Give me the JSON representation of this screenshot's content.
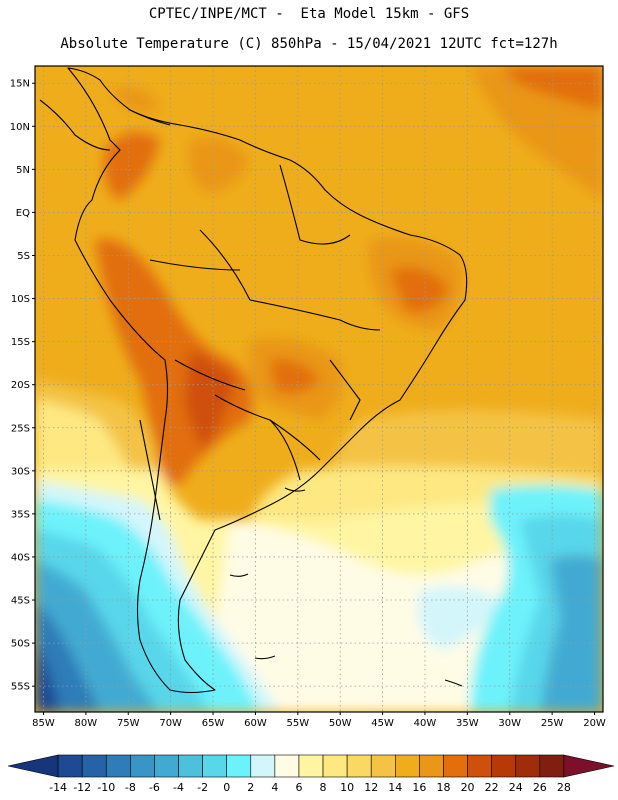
{
  "header": {
    "line1": "CPTEC/INPE/MCT -  Eta Model 15km - GFS",
    "line2": "Absolute Temperature (C) 850hPa - 15/04/2021 12UTC fct=127h"
  },
  "map": {
    "lon_range": [
      -86,
      -19
    ],
    "lat_range": [
      -58,
      17
    ],
    "lat_ticks": [
      {
        "value": 15,
        "label": "15N"
      },
      {
        "value": 10,
        "label": "10N"
      },
      {
        "value": 5,
        "label": "5N"
      },
      {
        "value": 0,
        "label": "EQ"
      },
      {
        "value": -5,
        "label": "5S"
      },
      {
        "value": -10,
        "label": "10S"
      },
      {
        "value": -15,
        "label": "15S"
      },
      {
        "value": -20,
        "label": "20S"
      },
      {
        "value": -25,
        "label": "25S"
      },
      {
        "value": -30,
        "label": "30S"
      },
      {
        "value": -35,
        "label": "35S"
      },
      {
        "value": -40,
        "label": "40S"
      },
      {
        "value": -45,
        "label": "45S"
      },
      {
        "value": -50,
        "label": "50S"
      },
      {
        "value": -55,
        "label": "55S"
      }
    ],
    "lon_ticks": [
      {
        "value": -85,
        "label": "85W"
      },
      {
        "value": -80,
        "label": "80W"
      },
      {
        "value": -75,
        "label": "75W"
      },
      {
        "value": -70,
        "label": "70W"
      },
      {
        "value": -65,
        "label": "65W"
      },
      {
        "value": -60,
        "label": "60W"
      },
      {
        "value": -55,
        "label": "55W"
      },
      {
        "value": -50,
        "label": "50W"
      },
      {
        "value": -45,
        "label": "45W"
      },
      {
        "value": -40,
        "label": "40W"
      },
      {
        "value": -35,
        "label": "35W"
      },
      {
        "value": -30,
        "label": "30W"
      },
      {
        "value": -25,
        "label": "25W"
      },
      {
        "value": -20,
        "label": "20W"
      }
    ]
  },
  "colorbar": {
    "min": -16,
    "max": 30,
    "labels": [
      "-14",
      "-12",
      "-10",
      "-8",
      "-6",
      "-4",
      "-2",
      "0",
      "2",
      "4",
      "6",
      "8",
      "10",
      "12",
      "14",
      "16",
      "18",
      "20",
      "22",
      "24",
      "26",
      "28"
    ],
    "label_values": [
      -14,
      -12,
      -10,
      -8,
      -6,
      -4,
      -2,
      0,
      2,
      4,
      6,
      8,
      10,
      12,
      14,
      16,
      18,
      20,
      22,
      24,
      26,
      28
    ],
    "colors": [
      "#17357a",
      "#1d4a93",
      "#2563a6",
      "#2f7cb8",
      "#3895c6",
      "#42aad2",
      "#4dc0de",
      "#58d6ea",
      "#6df2fb",
      "#d3f6fb",
      "#fffce6",
      "#fff5a3",
      "#fde882",
      "#f9d863",
      "#f4c345",
      "#efad1c",
      "#ea9617",
      "#e26e0c",
      "#cf4f0c",
      "#b83908",
      "#9e2e0a",
      "#7f1f10",
      "#7c0f2a"
    ]
  }
}
